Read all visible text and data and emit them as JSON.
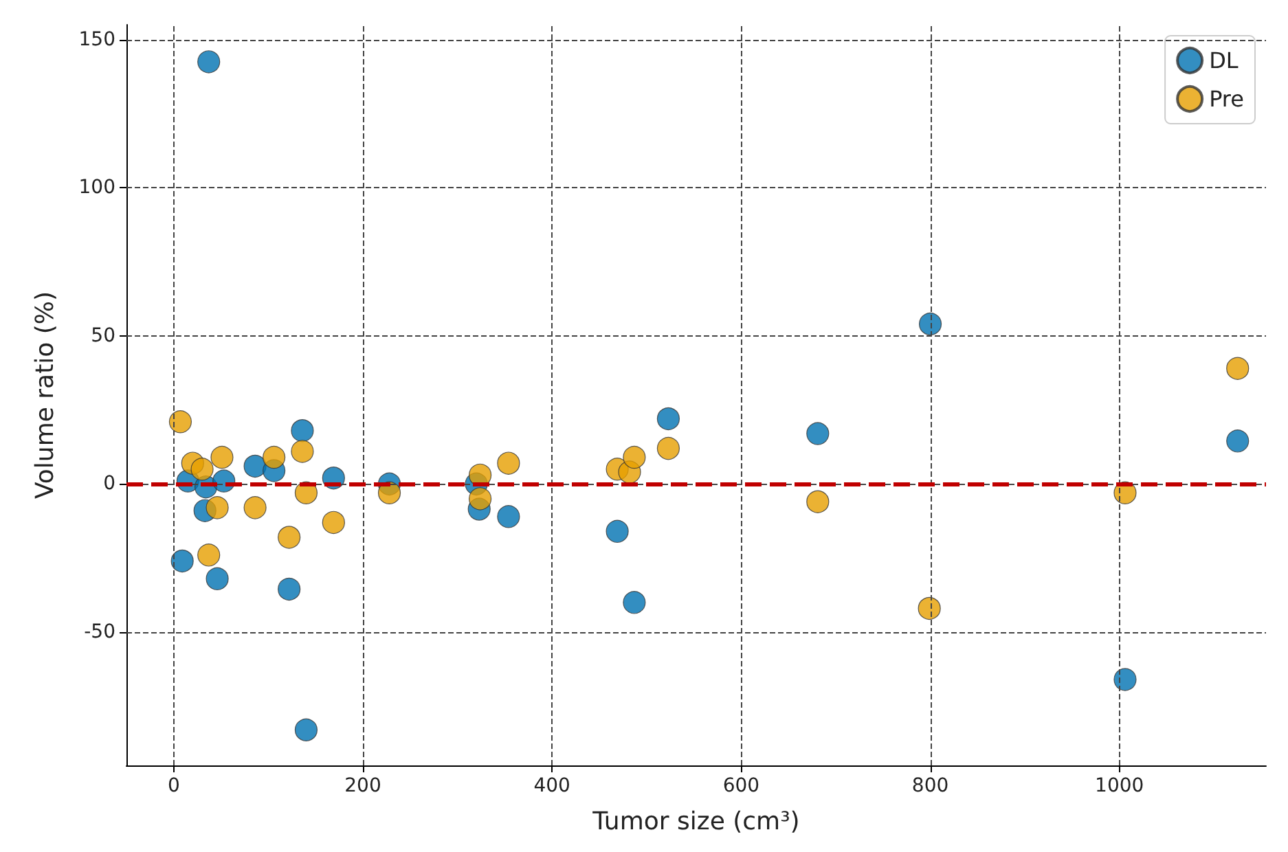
{
  "chart_data": {
    "type": "scatter",
    "xlabel": "Tumor size (cm³)",
    "ylabel": "Volume ratio (%)",
    "xlim": [
      -50,
      1155
    ],
    "ylim": [
      -95,
      155
    ],
    "xticks": [
      0,
      200,
      400,
      600,
      800,
      1000
    ],
    "yticks": [
      -50,
      0,
      50,
      100,
      150
    ],
    "grid": true,
    "legend": "top right",
    "marker": "circle",
    "ref_lines": [
      {
        "axis": "y",
        "value": 0,
        "color": "#c00000",
        "line_style": "dashed"
      }
    ],
    "series": [
      {
        "name": "DL",
        "color": "#0072b2",
        "x": [
          37,
          9,
          46,
          122,
          136,
          169,
          86,
          106,
          33,
          15,
          34,
          53,
          140,
          228,
          320,
          323,
          354,
          469,
          487,
          null,
          523,
          681,
          800,
          1006,
          1125
        ],
        "values": [
          142.5,
          -26,
          -32,
          -35.5,
          18,
          2,
          6,
          4.5,
          -9,
          1,
          -1,
          1,
          -83,
          0,
          0,
          -8.5,
          -11,
          -16,
          -40,
          null,
          22,
          17,
          54,
          -66,
          14.5
        ]
      },
      {
        "name": "Pre",
        "color": "#e69f00",
        "x": [
          7,
          20,
          null,
          51,
          30,
          37,
          46,
          86,
          106,
          122,
          136,
          140,
          169,
          228,
          null,
          324,
          324,
          354,
          469,
          482,
          487,
          523,
          681,
          799,
          1006,
          1125
        ],
        "values": [
          21,
          7,
          null,
          9,
          5,
          -24,
          -8,
          -8,
          9,
          -18,
          11,
          -3,
          -13,
          -3,
          null,
          3,
          -5,
          7,
          5,
          4,
          9,
          12,
          -6,
          -42,
          -3,
          39
        ]
      }
    ]
  }
}
